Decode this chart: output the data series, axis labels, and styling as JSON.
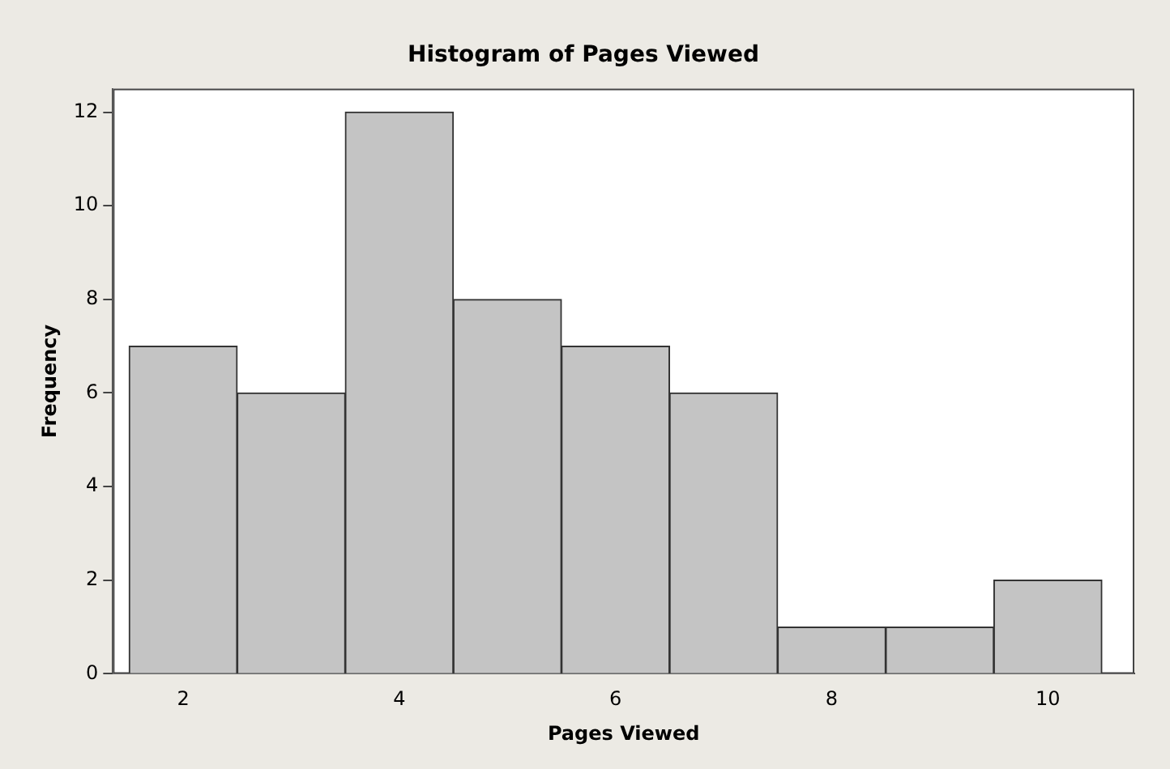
{
  "chart_data": {
    "type": "histogram",
    "title": "Histogram of Pages Viewed",
    "xlabel": "Pages Viewed",
    "ylabel": "Frequency",
    "bins": [
      1.5,
      2.5,
      3.5,
      4.5,
      5.5,
      6.5,
      7.5,
      8.5,
      9.5,
      10.5
    ],
    "values": [
      7,
      6,
      12,
      8,
      7,
      6,
      1,
      1,
      2
    ],
    "color": "#c4c4c4",
    "xlim": [
      1.35,
      10.8
    ],
    "xticks": [
      2,
      4,
      6,
      8,
      10
    ],
    "ylim": [
      0,
      12.5
    ],
    "yticks": [
      0,
      2,
      4,
      6,
      8,
      10,
      12
    ],
    "grid": false,
    "legend": false
  }
}
